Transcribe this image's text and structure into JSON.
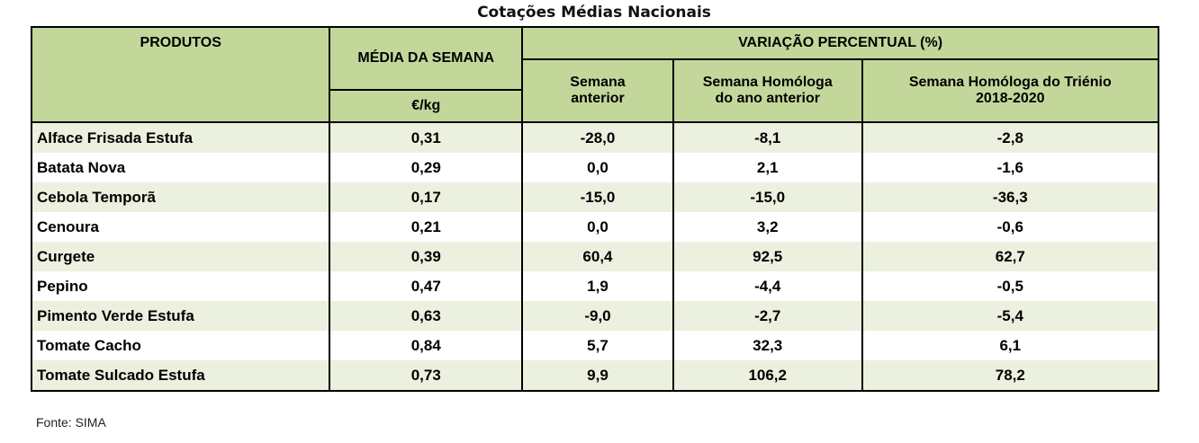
{
  "title": "Cotações Médias Nacionais",
  "headers": {
    "produtos": "PRODUTOS",
    "media": "MÉDIA DA SEMANA",
    "unit": "€/kg",
    "variacao": "VARIAÇÃO PERCENTUAL (%)",
    "sem_ant_1": "Semana",
    "sem_ant_2": "anterior",
    "hom_1": "Semana Homóloga",
    "hom_2": "do ano anterior",
    "tri_1": "Semana Homóloga do Triénio",
    "tri_2": "2018-2020"
  },
  "rows": [
    [
      "Alface Frisada Estufa",
      "0,31",
      "-28,0",
      "-8,1",
      "-2,8"
    ],
    [
      "Batata Nova",
      "0,29",
      "0,0",
      "2,1",
      "-1,6"
    ],
    [
      "Cebola Temporã",
      "0,17",
      "-15,0",
      "-15,0",
      "-36,3"
    ],
    [
      "Cenoura",
      "0,21",
      "0,0",
      "3,2",
      "-0,6"
    ],
    [
      "Curgete",
      "0,39",
      "60,4",
      "92,5",
      "62,7"
    ],
    [
      "Pepino",
      "0,47",
      "1,9",
      "-4,4",
      "-0,5"
    ],
    [
      "Pimento Verde Estufa",
      "0,63",
      "-9,0",
      "-2,7",
      "-5,4"
    ],
    [
      "Tomate Cacho",
      "0,84",
      "5,7",
      "32,3",
      "6,1"
    ],
    [
      "Tomate Sulcado Estufa",
      "0,73",
      "9,9",
      "106,2",
      "78,2"
    ]
  ],
  "source": "Fonte: SIMA"
}
